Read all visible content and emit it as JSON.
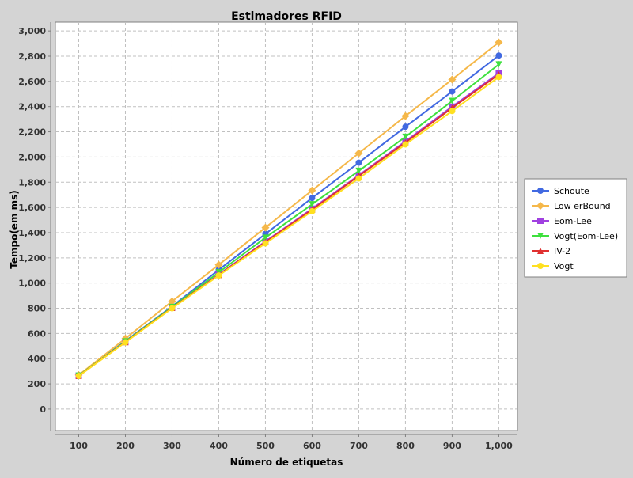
{
  "chart_data": {
    "type": "line",
    "title": "Estimadores RFID",
    "xlabel": "Número de etiquetas",
    "ylabel": "Tempo(em ms)",
    "x": [
      100,
      200,
      300,
      400,
      500,
      600,
      700,
      800,
      900,
      1000
    ],
    "x_tick_labels": [
      "100",
      "200",
      "300",
      "400",
      "500",
      "600",
      "700",
      "800",
      "900",
      "1,000"
    ],
    "y_ticks": [
      0,
      200,
      400,
      600,
      800,
      1000,
      1200,
      1400,
      1600,
      1800,
      2000,
      2200,
      2400,
      2600,
      2800,
      3000
    ],
    "y_tick_labels": [
      "0",
      "200",
      "400",
      "600",
      "800",
      "1,000",
      "1,200",
      "1,400",
      "1,600",
      "1,800",
      "2,000",
      "2,200",
      "2,400",
      "2,600",
      "2,800",
      "3,000"
    ],
    "xlim": [
      50,
      1040
    ],
    "ylim": [
      -170,
      3070
    ],
    "grid": true,
    "legend_position": "right",
    "plot_background": "#ffffff",
    "grid_color": "#c0c0c0",
    "series": [
      {
        "name": "Schoute",
        "marker": "circle",
        "color": "#4169e1",
        "values": [
          268,
          540,
          815,
          1105,
          1390,
          1675,
          1955,
          2240,
          2520,
          2805
        ]
      },
      {
        "name": "Low erBound",
        "marker": "diamond",
        "color": "#f5b84a",
        "values": [
          270,
          560,
          855,
          1145,
          1440,
          1735,
          2030,
          2325,
          2615,
          2910
        ]
      },
      {
        "name": "Eom-Lee",
        "marker": "square",
        "color": "#a040e0",
        "values": [
          265,
          533,
          805,
          1068,
          1330,
          1590,
          1855,
          2125,
          2400,
          2665
        ]
      },
      {
        "name": "Vogt(Eom-Lee)",
        "marker": "triangle-down",
        "color": "#3ee03e",
        "values": [
          266,
          537,
          810,
          1085,
          1360,
          1625,
          1890,
          2160,
          2445,
          2735
        ]
      },
      {
        "name": "IV-2",
        "marker": "triangle-up",
        "color": "#e03030",
        "values": [
          264,
          532,
          803,
          1065,
          1325,
          1582,
          1850,
          2115,
          2390,
          2655
        ]
      },
      {
        "name": "Vogt",
        "marker": "circle",
        "color": "#ffe020",
        "values": [
          263,
          530,
          800,
          1060,
          1315,
          1570,
          1830,
          2100,
          2365,
          2635
        ]
      }
    ]
  }
}
